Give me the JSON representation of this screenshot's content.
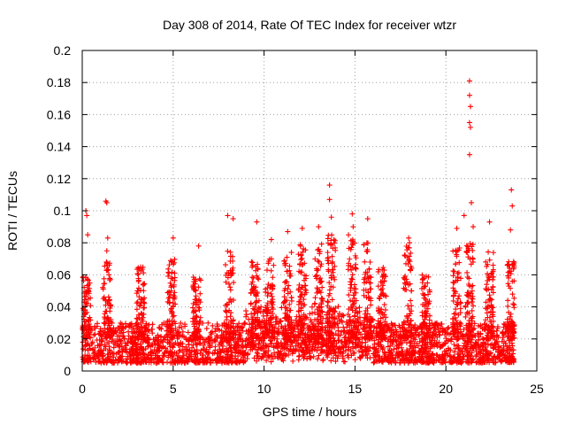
{
  "chart_data": {
    "type": "scatter",
    "title": "Day 308 of 2014, Rate Of TEC Index for receiver wtzr",
    "xlabel": "GPS time / hours",
    "ylabel": "ROTI / TECUs",
    "xlim": [
      0,
      25
    ],
    "ylim": [
      0,
      0.2
    ],
    "xticks": [
      0,
      5,
      10,
      15,
      20,
      25
    ],
    "xtick_labels": [
      "0",
      "5",
      "10",
      "15",
      "20",
      "25"
    ],
    "yticks": [
      0,
      0.02,
      0.04,
      0.06,
      0.08,
      0.1,
      0.12,
      0.14,
      0.16,
      0.18,
      0.2
    ],
    "ytick_labels": [
      "0",
      "0.02",
      "0.04",
      "0.06",
      "0.08",
      "0.1",
      "0.12",
      "0.14",
      "0.16",
      "0.18",
      "0.2"
    ],
    "grid": true,
    "marker": "+",
    "color": "#ff0000",
    "series": [
      {
        "name": "ROTI",
        "x_range": [
          0,
          23.75
        ],
        "baseline_range": [
          0.005,
          0.03
        ],
        "notable_points": [
          {
            "x": 0.2,
            "y": 0.1
          },
          {
            "x": 0.25,
            "y": 0.097
          },
          {
            "x": 0.3,
            "y": 0.085
          },
          {
            "x": 1.3,
            "y": 0.106
          },
          {
            "x": 1.35,
            "y": 0.105
          },
          {
            "x": 1.4,
            "y": 0.083
          },
          {
            "x": 1.35,
            "y": 0.075
          },
          {
            "x": 5.0,
            "y": 0.083
          },
          {
            "x": 6.4,
            "y": 0.078
          },
          {
            "x": 8.0,
            "y": 0.097
          },
          {
            "x": 8.3,
            "y": 0.095
          },
          {
            "x": 9.6,
            "y": 0.093
          },
          {
            "x": 10.4,
            "y": 0.082
          },
          {
            "x": 11.3,
            "y": 0.087
          },
          {
            "x": 12.1,
            "y": 0.089
          },
          {
            "x": 13.0,
            "y": 0.09
          },
          {
            "x": 13.6,
            "y": 0.116
          },
          {
            "x": 13.6,
            "y": 0.107
          },
          {
            "x": 13.7,
            "y": 0.096
          },
          {
            "x": 14.85,
            "y": 0.098
          },
          {
            "x": 14.9,
            "y": 0.09
          },
          {
            "x": 15.7,
            "y": 0.095
          },
          {
            "x": 17.95,
            "y": 0.083
          },
          {
            "x": 18.0,
            "y": 0.08
          },
          {
            "x": 20.6,
            "y": 0.089
          },
          {
            "x": 21.0,
            "y": 0.097
          },
          {
            "x": 21.3,
            "y": 0.181
          },
          {
            "x": 21.3,
            "y": 0.172
          },
          {
            "x": 21.35,
            "y": 0.165
          },
          {
            "x": 21.3,
            "y": 0.155
          },
          {
            "x": 21.35,
            "y": 0.152
          },
          {
            "x": 21.3,
            "y": 0.135
          },
          {
            "x": 21.4,
            "y": 0.105
          },
          {
            "x": 21.5,
            "y": 0.09
          },
          {
            "x": 22.4,
            "y": 0.093
          },
          {
            "x": 23.6,
            "y": 0.113
          },
          {
            "x": 23.65,
            "y": 0.103
          },
          {
            "x": 23.55,
            "y": 0.088
          }
        ],
        "peak_bursts": [
          {
            "x": 0.25,
            "y": 0.06
          },
          {
            "x": 1.35,
            "y": 0.07
          },
          {
            "x": 3.2,
            "y": 0.065
          },
          {
            "x": 4.9,
            "y": 0.07
          },
          {
            "x": 6.3,
            "y": 0.06
          },
          {
            "x": 8.1,
            "y": 0.075
          },
          {
            "x": 9.5,
            "y": 0.07
          },
          {
            "x": 10.3,
            "y": 0.07
          },
          {
            "x": 11.3,
            "y": 0.075
          },
          {
            "x": 12.1,
            "y": 0.08
          },
          {
            "x": 13.0,
            "y": 0.08
          },
          {
            "x": 13.7,
            "y": 0.085
          },
          {
            "x": 14.85,
            "y": 0.085
          },
          {
            "x": 15.7,
            "y": 0.08
          },
          {
            "x": 16.5,
            "y": 0.065
          },
          {
            "x": 17.9,
            "y": 0.078
          },
          {
            "x": 18.9,
            "y": 0.06
          },
          {
            "x": 20.6,
            "y": 0.078
          },
          {
            "x": 21.3,
            "y": 0.08
          },
          {
            "x": 22.4,
            "y": 0.075
          },
          {
            "x": 23.6,
            "y": 0.07
          }
        ]
      }
    ]
  }
}
